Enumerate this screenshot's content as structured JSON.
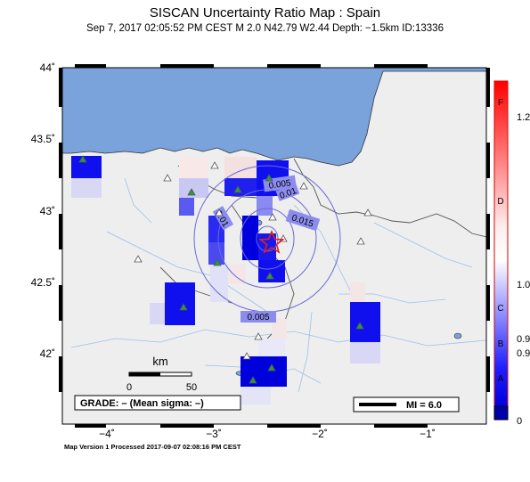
{
  "header": {
    "title": "SISCAN Uncertainty Ratio Map : Spain",
    "subtitle": "Sep  7, 2017 02:05:52 PM CEST   M 2.0   N42.79 W2.44   Depth: −1.5km   ID:13336"
  },
  "axes": {
    "lat_ticks": [
      "44˚",
      "43.5˚",
      "43˚",
      "42.5˚",
      "42˚"
    ],
    "lon_ticks": [
      "−4˚",
      "−3˚",
      "−2˚",
      "−1˚"
    ]
  },
  "contours": [
    "0.005",
    "0.01",
    "0.01",
    "0.015",
    "0.005"
  ],
  "scale_bar": {
    "unit": "km",
    "ticks": [
      "0",
      "50"
    ]
  },
  "grade_box": "GRADE: – (Mean sigma: –)",
  "mi_legend": "MI = 6.0",
  "colorbar": {
    "letters": [
      "F",
      "D",
      "C",
      "B",
      "A"
    ],
    "values": [
      "1.2",
      "1.0",
      "0.9",
      "0.9",
      "0"
    ]
  },
  "footer": "Map Version 1 Processed 2017-09-07 02:08:16 PM CEST",
  "colors": {
    "sea": "#7aa3dc",
    "land": "#eeeeee",
    "epicenter": "#e0201c",
    "station": "#2a9a3a",
    "contour": "#6a6ad8"
  }
}
